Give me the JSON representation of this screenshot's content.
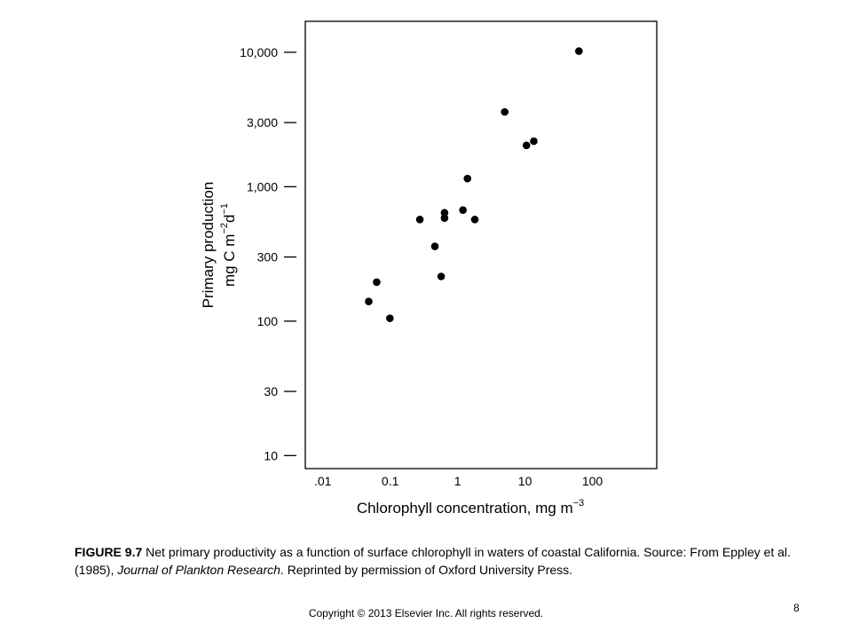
{
  "chart_data": {
    "type": "scatter",
    "xlabel": "Chlorophyll concentration, mg m",
    "xlabel_sup": "−3",
    "ylabel_line1": "Primary production",
    "ylabel_line2_parts": [
      "mg C m",
      "−2",
      "d",
      "−1"
    ],
    "x_scale": "log",
    "y_scale": "log",
    "xlim": [
      0.0055,
      900
    ],
    "ylim": [
      8,
      17000
    ],
    "x_ticks": [
      {
        "value": 0.01,
        "label": ".01"
      },
      {
        "value": 0.1,
        "label": "0.1"
      },
      {
        "value": 1,
        "label": "1"
      },
      {
        "value": 10,
        "label": "10"
      },
      {
        "value": 100,
        "label": "100"
      }
    ],
    "y_ticks": [
      {
        "value": 10,
        "label": "10"
      },
      {
        "value": 30,
        "label": "30"
      },
      {
        "value": 100,
        "label": "100"
      },
      {
        "value": 300,
        "label": "300"
      },
      {
        "value": 1000,
        "label": "1,000"
      },
      {
        "value": 3000,
        "label": "3,000"
      },
      {
        "value": 10000,
        "label": "10,000"
      }
    ],
    "grid": false,
    "points": [
      {
        "x": 0.048,
        "y": 140
      },
      {
        "x": 0.063,
        "y": 195
      },
      {
        "x": 0.099,
        "y": 105
      },
      {
        "x": 0.275,
        "y": 570
      },
      {
        "x": 0.46,
        "y": 360
      },
      {
        "x": 0.57,
        "y": 215
      },
      {
        "x": 0.64,
        "y": 585
      },
      {
        "x": 0.64,
        "y": 640
      },
      {
        "x": 1.2,
        "y": 670
      },
      {
        "x": 1.4,
        "y": 1150
      },
      {
        "x": 1.8,
        "y": 570
      },
      {
        "x": 5.0,
        "y": 3600
      },
      {
        "x": 10.5,
        "y": 2030
      },
      {
        "x": 13.5,
        "y": 2180
      },
      {
        "x": 63,
        "y": 10200
      }
    ],
    "marker_color": "#000000"
  },
  "caption": {
    "figure_label": "FIGURE 9.7",
    "text_before": " Net primary productivity as a function of surface chlorophyll in waters of coastal California. Source: From Eppley et al. (1985), ",
    "journal": "Journal of Plankton Research",
    "text_after": ". Reprinted by permission of Oxford University Press."
  },
  "footer": {
    "copyright": "Copyright © 2013 Elsevier Inc. All rights reserved.",
    "page_number": "8"
  }
}
